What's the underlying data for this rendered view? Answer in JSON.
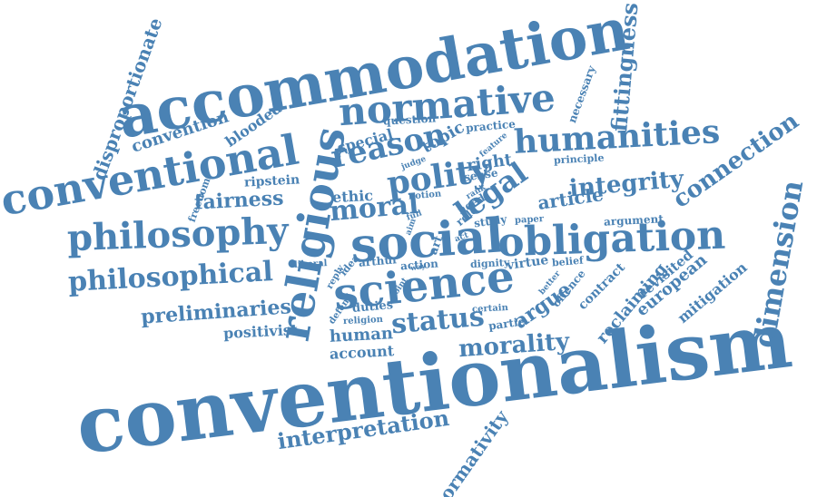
{
  "colors": {
    "word": "#4a82b4",
    "background": "#ffffff"
  },
  "words": [
    "conventionalism",
    "accommodation",
    "conventional",
    "religious",
    "social",
    "science",
    "normative",
    "obligation",
    "humanities",
    "philosophy",
    "philosophical",
    "reason",
    "polity",
    "dimension",
    "moral",
    "legal",
    "integrity",
    "connection",
    "fittingness",
    "status",
    "morality",
    "interpretation",
    "normativity",
    "disproportionate",
    "preliminaries",
    "fairness",
    "convention",
    "blooded",
    "positivist",
    "argue",
    "reclaiming",
    "european",
    "mitigation",
    "revisited",
    "contract",
    "offence",
    "ethic",
    "article",
    "right",
    "topic",
    "special",
    "question",
    "practice",
    "necessary",
    "principle",
    "sense",
    "human",
    "account",
    "ripstein",
    "freedom",
    "argument",
    "virtue",
    "belief",
    "dignity",
    "action",
    "arthur",
    "idea",
    "reply",
    "liberal",
    "duties",
    "religion",
    "defend",
    "certain",
    "partie",
    "study",
    "paper",
    "role",
    "need",
    "rank",
    "notion",
    "full",
    "aim",
    "art",
    "way",
    "point",
    "better",
    "judge",
    "feature",
    "act"
  ]
}
